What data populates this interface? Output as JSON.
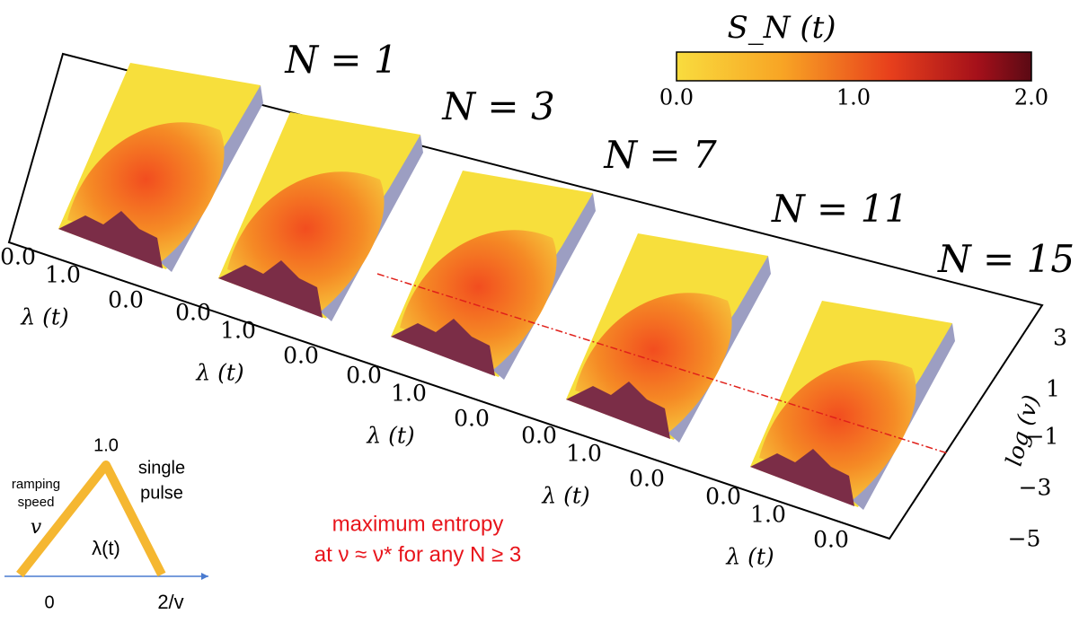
{
  "panels": [
    {
      "title": "N = 1",
      "ticks": [
        "0.0",
        "1.0",
        "0.0"
      ],
      "axis_label": "λ (t)"
    },
    {
      "title": "N = 3",
      "ticks": [
        "0.0",
        "1.0",
        "0.0"
      ],
      "axis_label": "λ (t)"
    },
    {
      "title": "N = 7",
      "ticks": [
        "0.0",
        "1.0",
        "0.0"
      ],
      "axis_label": "λ (t)"
    },
    {
      "title": "N = 11",
      "ticks": [
        "0.0",
        "1.0",
        "0.0"
      ],
      "axis_label": "λ (t)"
    },
    {
      "title": "N = 15",
      "ticks": [
        "0.0",
        "1.0",
        "0.0"
      ],
      "axis_label": "λ (t)"
    }
  ],
  "colorbar": {
    "label": "S_N (t)",
    "ticks": [
      "0.0",
      "1.0",
      "2.0"
    ]
  },
  "log_axis": {
    "label": "log (v)",
    "ticks": [
      "3",
      "1",
      "−1",
      "−3",
      "−5"
    ]
  },
  "inset": {
    "peak": "1.0",
    "speed_line1": "ramping",
    "speed_line2": "speed",
    "speed_symbol": "v",
    "pulse_line1": "single",
    "pulse_line2": "pulse",
    "curve_label": "λ(t)",
    "start": "0",
    "end": "2/v"
  },
  "annotation": {
    "line1": "maximum entropy",
    "line2": "at ν ≈ ν* for any N ≥ 3"
  }
}
